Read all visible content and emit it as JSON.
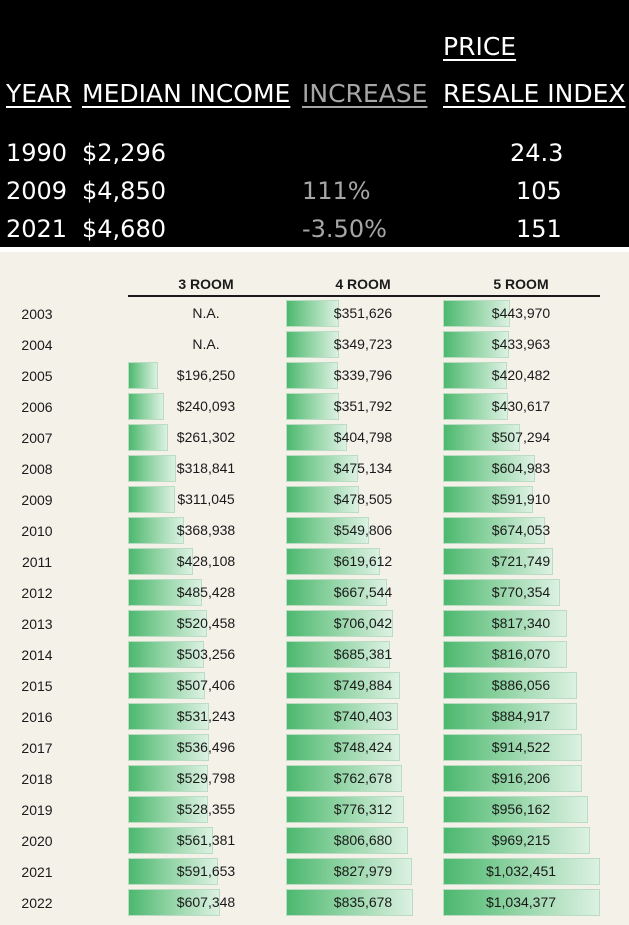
{
  "summary_table": {
    "headers": {
      "year": "YEAR",
      "median_income": "MEDIAN INCOME",
      "increase": "INCREASE",
      "price_line1": "PRICE",
      "price_line2": "RESALE INDEX"
    },
    "rows": [
      {
        "year": "1990",
        "income": "$2,296",
        "increase": "",
        "index": "24.3"
      },
      {
        "year": "2009",
        "income": "$4,850",
        "increase": "111%",
        "index": "105"
      },
      {
        "year": "2021",
        "income": "$4,680",
        "increase": "-3.50%",
        "index": "151"
      }
    ]
  },
  "chart_data": {
    "type": "table",
    "columns": [
      "3 ROOM",
      "4 ROOM",
      "5 ROOM"
    ],
    "years": [
      "2003",
      "2004",
      "2005",
      "2006",
      "2007",
      "2008",
      "2009",
      "2010",
      "2011",
      "2012",
      "2013",
      "2014",
      "2015",
      "2016",
      "2017",
      "2018",
      "2019",
      "2020",
      "2021",
      "2022"
    ],
    "series": [
      {
        "name": "3 ROOM",
        "labels": [
          "N.A.",
          "N.A.",
          "$196,250",
          "$240,093",
          "$261,302",
          "$318,841",
          "$311,045",
          "$368,938",
          "$428,108",
          "$485,428",
          "$520,458",
          "$503,256",
          "$507,406",
          "$531,243",
          "$536,496",
          "$529,798",
          "$528,355",
          "$561,381",
          "$591,653",
          "$607,348"
        ],
        "values": [
          null,
          null,
          196250,
          240093,
          261302,
          318841,
          311045,
          368938,
          428108,
          485428,
          520458,
          503256,
          507406,
          531243,
          536496,
          529798,
          528355,
          561381,
          591653,
          607348
        ]
      },
      {
        "name": "4 ROOM",
        "labels": [
          "$351,626",
          "$349,723",
          "$339,796",
          "$351,792",
          "$404,798",
          "$475,134",
          "$478,505",
          "$549,806",
          "$619,612",
          "$667,544",
          "$706,042",
          "$685,381",
          "$749,884",
          "$740,403",
          "$748,424",
          "$762,678",
          "$776,312",
          "$806,680",
          "$827,979",
          "$835,678"
        ],
        "values": [
          351626,
          349723,
          339796,
          351792,
          404798,
          475134,
          478505,
          549806,
          619612,
          667544,
          706042,
          685381,
          749884,
          740403,
          748424,
          762678,
          776312,
          806680,
          827979,
          835678
        ]
      },
      {
        "name": "5 ROOM",
        "labels": [
          "$443,970",
          "$433,963",
          "$420,482",
          "$430,617",
          "$507,294",
          "$604,983",
          "$591,910",
          "$674,053",
          "$721,749",
          "$770,354",
          "$817,340",
          "$816,070",
          "$886,056",
          "$884,917",
          "$914,522",
          "$916,206",
          "$956,162",
          "$969,215",
          "$1,032,451",
          "$1,034,377"
        ],
        "values": [
          443970,
          433963,
          420482,
          430617,
          507294,
          604983,
          591910,
          674053,
          721749,
          770354,
          817340,
          816070,
          886056,
          884917,
          914522,
          916206,
          956162,
          969215,
          1032451,
          1034377
        ]
      }
    ],
    "colors": {
      "bar_start": "#4cb86e",
      "bar_end": "#dcf1e2",
      "background": "#f4f1e9"
    }
  }
}
